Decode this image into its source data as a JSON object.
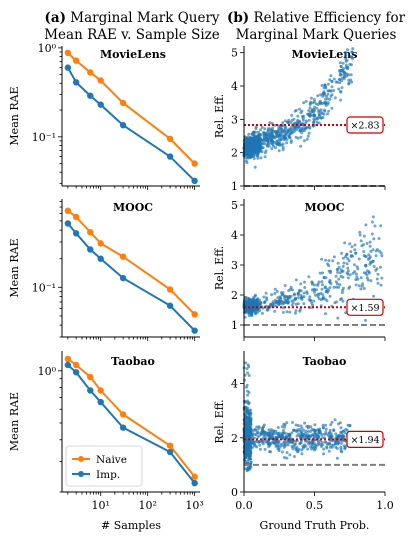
{
  "figure": {
    "left_title_tag": "(a)",
    "left_title_line1": "Marginal Mark Query",
    "left_title_line2": "Mean RAE v. Sample Size",
    "right_title_tag": "(b)",
    "right_title_line1": "Relative Efficiency for",
    "right_title_line2": "Marginal Mark Queries"
  },
  "colors": {
    "naive": "#ff7f0e",
    "imp": "#1f77b4",
    "scatter": "#1f77b4",
    "dotted_ref": "#cc0000",
    "dashed_ref": "#808080"
  },
  "chart_data": [
    {
      "type": "line",
      "panel": "MovieLens",
      "xscale": "log",
      "yscale": "log",
      "ylabel": "Mean RAE",
      "xlabel": "",
      "xlim": [
        1.5,
        1300
      ],
      "ylim": [
        0.028,
        1.05
      ],
      "x": [
        2,
        3,
        6,
        10,
        30,
        300,
        1000
      ],
      "series": [
        {
          "name": "Naive",
          "color": "#ff7f0e",
          "values": [
            0.88,
            0.72,
            0.53,
            0.43,
            0.24,
            0.095,
            0.05
          ]
        },
        {
          "name": "Imp.",
          "color": "#1f77b4",
          "values": [
            0.6,
            0.41,
            0.29,
            0.23,
            0.135,
            0.06,
            0.032
          ]
        }
      ],
      "yticks": [
        {
          "value": 1.0,
          "label": "10⁰"
        },
        {
          "value": 0.1,
          "label": "10⁻¹"
        }
      ],
      "xticks": []
    },
    {
      "type": "line",
      "panel": "MOOC",
      "xscale": "log",
      "yscale": "log",
      "ylabel": "Mean RAE",
      "xlabel": "",
      "xlim": [
        1.5,
        1300
      ],
      "ylim": [
        0.03,
        0.85
      ],
      "x": [
        2,
        3,
        6,
        10,
        30,
        300,
        1000
      ],
      "series": [
        {
          "name": "Naive",
          "color": "#ff7f0e",
          "values": [
            0.64,
            0.55,
            0.38,
            0.29,
            0.21,
            0.095,
            0.052
          ]
        },
        {
          "name": "Imp.",
          "color": "#1f77b4",
          "values": [
            0.47,
            0.37,
            0.25,
            0.2,
            0.125,
            0.064,
            0.035
          ]
        }
      ],
      "yticks": [
        {
          "value": 0.1,
          "label": "10⁻¹"
        }
      ],
      "xticks": []
    },
    {
      "type": "line",
      "panel": "Taobao",
      "xscale": "log",
      "yscale": "log",
      "ylabel": "Mean RAE",
      "xlabel": "# Samples",
      "xlim": [
        1.5,
        1300
      ],
      "ylim": [
        0.2,
        1.3
      ],
      "x": [
        2,
        3,
        6,
        10,
        30,
        300,
        1000
      ],
      "series": [
        {
          "name": "Naive",
          "color": "#ff7f0e",
          "values": [
            1.17,
            1.08,
            0.92,
            0.77,
            0.56,
            0.37,
            0.245
          ]
        },
        {
          "name": "Imp.",
          "color": "#1f77b4",
          "values": [
            1.08,
            0.98,
            0.77,
            0.66,
            0.47,
            0.34,
            0.225
          ]
        }
      ],
      "yticks": [
        {
          "value": 1.0,
          "label": "10⁰"
        }
      ],
      "xticks": [
        {
          "value": 10,
          "label": "10¹"
        },
        {
          "value": 100,
          "label": "10²"
        },
        {
          "value": 1000,
          "label": "10³"
        }
      ],
      "legend": {
        "placement": "lower left",
        "entries": [
          "Naive",
          "Imp."
        ]
      }
    },
    {
      "type": "scatter",
      "panel": "MovieLens",
      "ylabel": "Rel. Eff.",
      "xlabel": "",
      "xlim": [
        0,
        1.0
      ],
      "ylim": [
        1,
        5.2
      ],
      "yticks": [
        1,
        2,
        3,
        4,
        5
      ],
      "xticks": [],
      "reference_dotted": 2.83,
      "reference_dashed": 1.0,
      "annotation": "×2.83",
      "trend": [
        [
          0.0,
          2.1
        ],
        [
          0.1,
          2.3
        ],
        [
          0.2,
          2.45
        ],
        [
          0.3,
          2.6
        ],
        [
          0.4,
          2.85
        ],
        [
          0.5,
          3.2
        ],
        [
          0.6,
          3.75
        ],
        [
          0.7,
          4.45
        ],
        [
          0.78,
          4.95
        ]
      ]
    },
    {
      "type": "scatter",
      "panel": "MOOC",
      "ylabel": "Rel. Eff.",
      "xlabel": "",
      "xlim": [
        0,
        1.0
      ],
      "ylim": [
        0.6,
        5.2
      ],
      "yticks": [
        1,
        2,
        3,
        4,
        5
      ],
      "xticks": [],
      "reference_dotted": 1.59,
      "reference_dashed": 1.0,
      "annotation": "×1.59",
      "trend": [
        [
          0.0,
          1.6
        ],
        [
          0.2,
          1.75
        ],
        [
          0.4,
          2.0
        ],
        [
          0.6,
          2.4
        ],
        [
          0.8,
          2.9
        ],
        [
          0.97,
          3.2
        ]
      ]
    },
    {
      "type": "scatter",
      "panel": "Taobao",
      "ylabel": "Rel. Eff.",
      "xlabel": "Ground Truth Prob.",
      "xlim": [
        0,
        1.0
      ],
      "ylim": [
        0,
        5.2
      ],
      "yticks": [
        0,
        2,
        4
      ],
      "xticks": [
        {
          "value": 0.0,
          "label": "0.0"
        },
        {
          "value": 0.5,
          "label": "0.5"
        },
        {
          "value": 1.0,
          "label": "1.0"
        }
      ],
      "reference_dotted": 1.94,
      "reference_dashed": 1.0,
      "annotation": "×1.94",
      "trend": [
        [
          0.0,
          2.0
        ],
        [
          0.3,
          1.95
        ],
        [
          0.6,
          1.95
        ],
        [
          0.75,
          2.0
        ]
      ]
    }
  ]
}
